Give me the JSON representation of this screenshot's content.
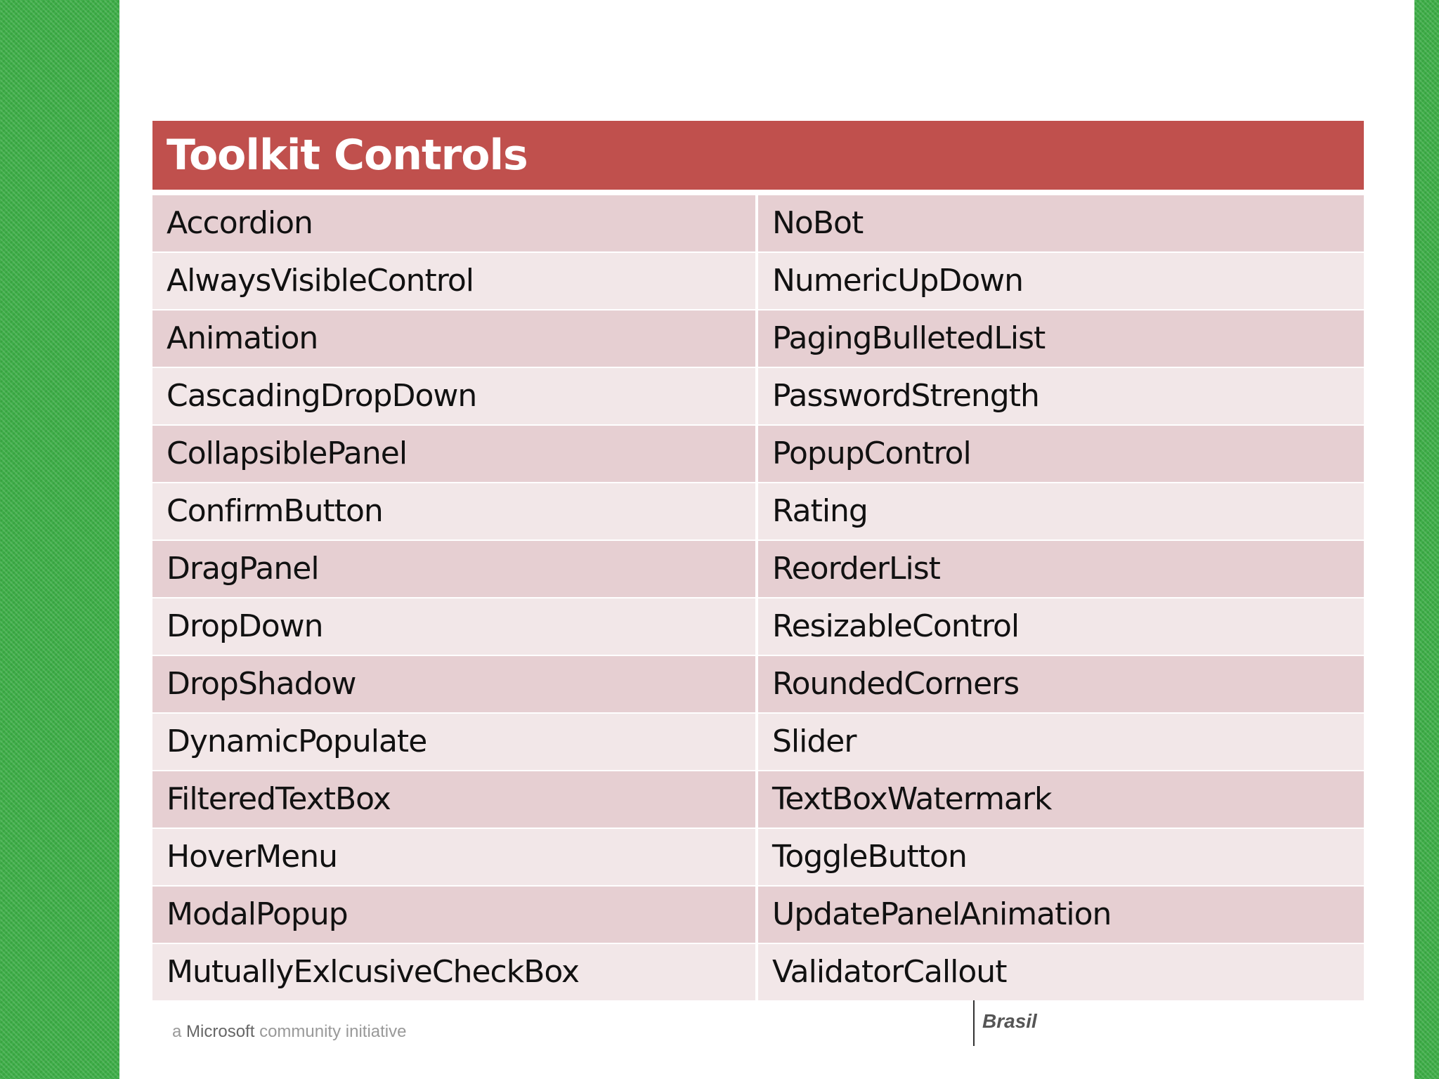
{
  "title": "Toolkit Controls",
  "rows": [
    [
      "Accordion",
      "NoBot"
    ],
    [
      "AlwaysVisibleControl",
      "NumericUpDown"
    ],
    [
      "Animation",
      "PagingBulletedList"
    ],
    [
      "CascadingDropDown",
      "PasswordStrength"
    ],
    [
      "CollapsiblePanel",
      "PopupControl"
    ],
    [
      "ConfirmButton",
      "Rating"
    ],
    [
      "DragPanel",
      "ReorderList"
    ],
    [
      "DropDown",
      "ResizableControl"
    ],
    [
      "DropShadow",
      "RoundedCorners"
    ],
    [
      "DynamicPopulate",
      "Slider"
    ],
    [
      "FilteredTextBox",
      "TextBoxWatermark"
    ],
    [
      "HoverMenu",
      "ToggleButton"
    ],
    [
      "ModalPopup",
      "UpdatePanelAnimation"
    ],
    [
      "MutuallyExlcusiveCheckBox",
      "ValidatorCallout"
    ]
  ],
  "footer": {
    "left_prefix": "a",
    "left_brand": "Microsoft",
    "left_suffix": "community initiative",
    "right_text": "Brasil"
  },
  "colors": {
    "header": "#c0504d",
    "row_odd": "#e6cfd2",
    "row_even": "#f2e7e8",
    "side": "#3fae49"
  }
}
